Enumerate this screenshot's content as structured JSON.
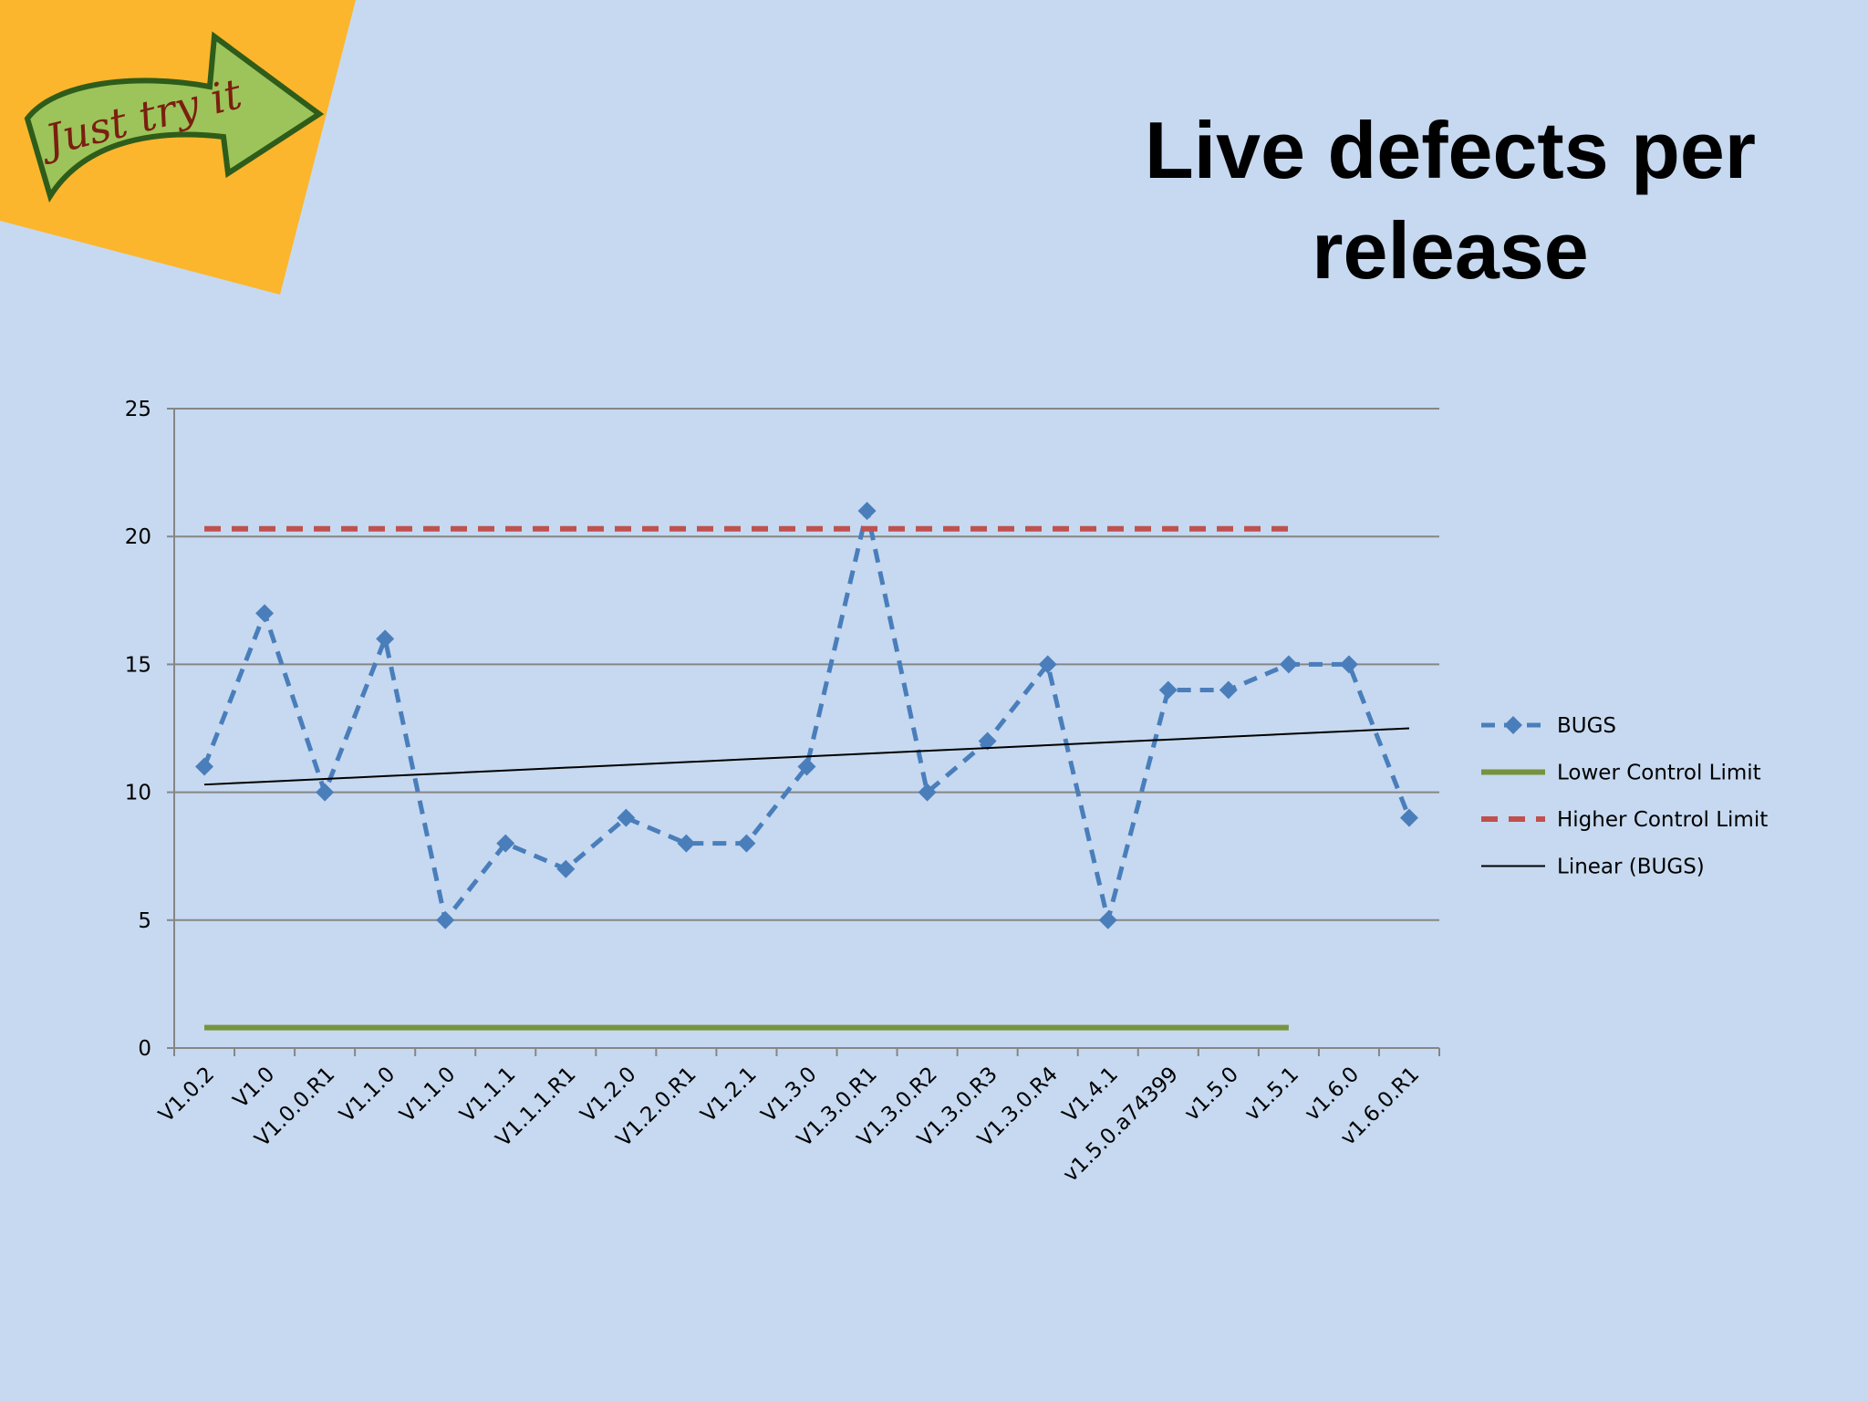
{
  "logo_text": "Just try it",
  "chart_data": {
    "type": "line",
    "title": "Live defects per release",
    "categories": [
      "V1.0.2",
      "V1.0",
      "V1.0.0.R1",
      "V1.1.0",
      "V1.1.0",
      "V1.1.1",
      "V1.1.1.R1",
      "V1.2.0",
      "V1.2.0.R1",
      "V1.2.1",
      "V1.3.0",
      "V1.3.0.R1",
      "V1.3.0.R2",
      "V1.3.0.R3",
      "V1.3.0.R4",
      "V1.4.1",
      "v1.5.0.a74399",
      "v1.5.0",
      "v1.5.1",
      "v1.6.0",
      "v1.6.0.R1"
    ],
    "series": [
      {
        "name": "BUGS",
        "color": "#4a7ebb",
        "dashed": true,
        "marker": "diamond",
        "width": 5,
        "values": [
          11,
          17,
          10,
          16,
          5,
          8,
          7,
          9,
          8,
          8,
          11,
          21,
          10,
          12,
          15,
          5,
          14,
          14,
          15,
          15,
          9
        ]
      },
      {
        "name": "Lower Control Limit",
        "color": "#77933c",
        "dashed": false,
        "marker": "none",
        "width": 6,
        "values": [
          0.8,
          0.8,
          0.8,
          0.8,
          0.8,
          0.8,
          0.8,
          0.8,
          0.8,
          0.8,
          0.8,
          0.8,
          0.8,
          0.8,
          0.8,
          0.8,
          0.8,
          0.8,
          0.8,
          null,
          null
        ]
      },
      {
        "name": "Higher Control Limit",
        "color": "#c0504d",
        "dashed": true,
        "marker": "none",
        "width": 6,
        "values": [
          20.3,
          20.3,
          20.3,
          20.3,
          20.3,
          20.3,
          20.3,
          20.3,
          20.3,
          20.3,
          20.3,
          20.3,
          20.3,
          20.3,
          20.3,
          20.3,
          20.3,
          20.3,
          20.3,
          null,
          null
        ]
      },
      {
        "name": "Linear (BUGS)",
        "color": "#000000",
        "dashed": false,
        "marker": "none",
        "width": 2,
        "values": [
          10.3,
          10.41,
          10.52,
          10.63,
          10.74,
          10.85,
          10.96,
          11.07,
          11.18,
          11.29,
          11.4,
          11.51,
          11.62,
          11.73,
          11.84,
          11.95,
          12.06,
          12.17,
          12.28,
          12.39,
          12.5
        ]
      }
    ],
    "ylim": [
      0,
      25
    ],
    "yticks": [
      0,
      5,
      10,
      15,
      20,
      25
    ],
    "grid": true,
    "legend": "right"
  }
}
